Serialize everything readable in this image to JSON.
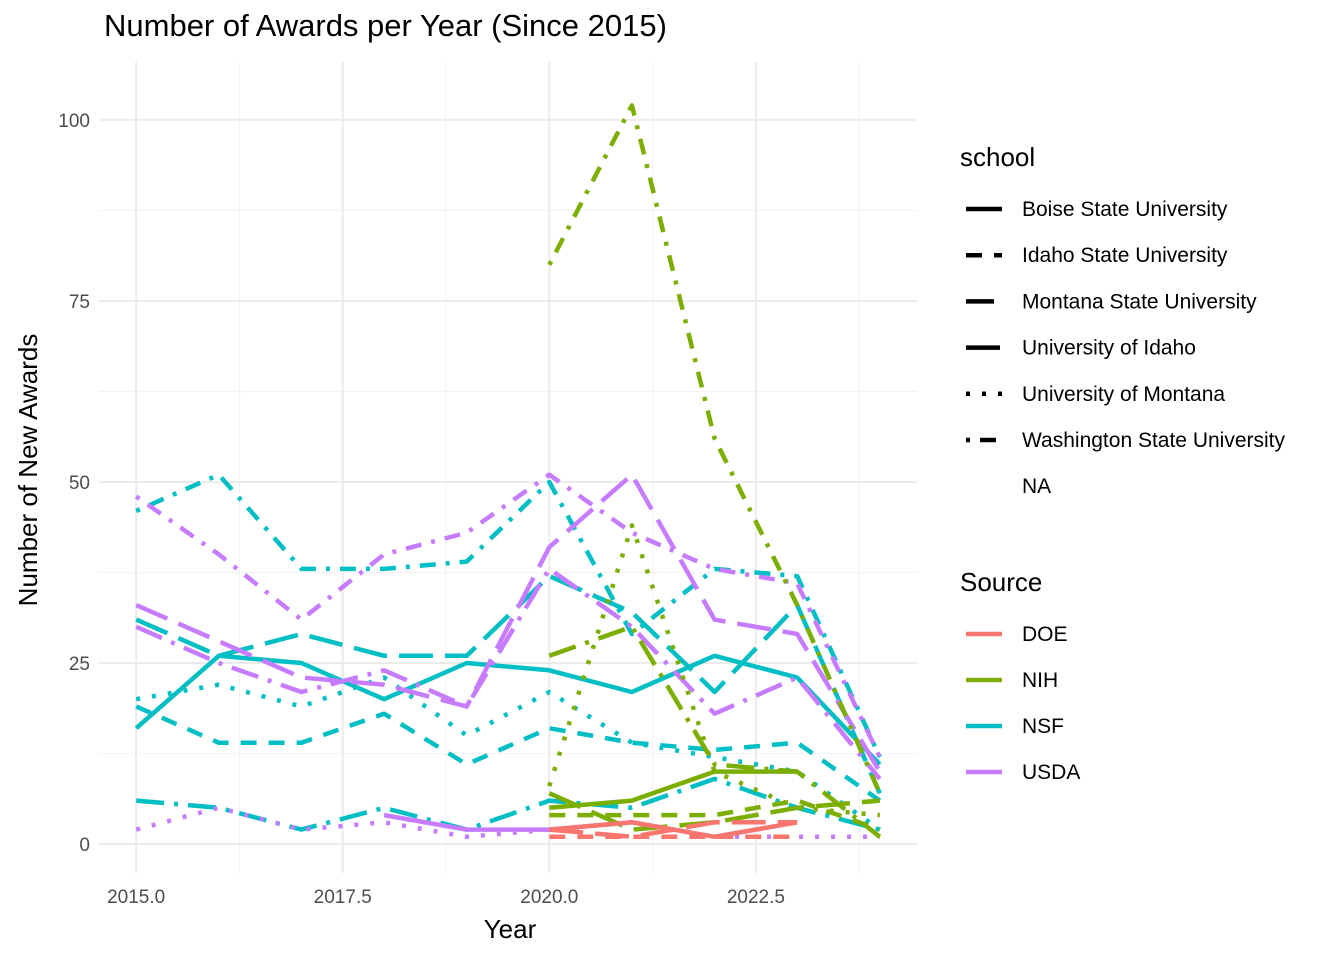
{
  "chart_data": {
    "type": "line",
    "title": "Number of Awards per Year (Since 2015)",
    "xlabel": "Year",
    "ylabel": "Number of New Awards",
    "xlim": [
      2014.55,
      2024.45
    ],
    "ylim": [
      -4,
      108
    ],
    "x_ticks": [
      2015.0,
      2017.5,
      2020.0,
      2022.5
    ],
    "x_tick_labels": [
      "2015.0",
      "2017.5",
      "2020.0",
      "2022.5"
    ],
    "y_ticks": [
      0,
      25,
      50,
      75,
      100
    ],
    "y_tick_labels": [
      "0",
      "25",
      "50",
      "75",
      "100"
    ],
    "grid": true,
    "legend_placement": "right",
    "legend_school_title": "school",
    "legend_source_title": "Source",
    "schools": [
      {
        "name": "Boise State University",
        "dash": "solid"
      },
      {
        "name": "Idaho State University",
        "dash": "dashed"
      },
      {
        "name": "Montana State University",
        "dash": "longdash-dot"
      },
      {
        "name": "University of Idaho",
        "dash": "longdash"
      },
      {
        "name": "University of Montana",
        "dash": "dotted"
      },
      {
        "name": "Washington State University",
        "dash": "dot-dash"
      },
      {
        "name": "NA",
        "dash": "none"
      }
    ],
    "sources": [
      {
        "name": "DOE",
        "color": "#F8766D"
      },
      {
        "name": "NIH",
        "color": "#7CAE00"
      },
      {
        "name": "NSF",
        "color": "#00BFC4"
      },
      {
        "name": "USDA",
        "color": "#C77CFF"
      }
    ],
    "series": [
      {
        "source": "NSF",
        "school": "Boise State University",
        "x": [
          2015,
          2016,
          2017,
          2018,
          2019,
          2020,
          2021,
          2022,
          2023,
          2024
        ],
        "y": [
          16,
          26,
          25,
          20,
          25,
          24,
          21,
          26,
          23,
          11
        ]
      },
      {
        "source": "NSF",
        "school": "Washington State University",
        "x": [
          2015,
          2016,
          2017,
          2018,
          2019,
          2020,
          2021,
          2022,
          2023,
          2024
        ],
        "y": [
          46,
          51,
          38,
          38,
          39,
          50,
          29,
          38,
          37,
          12
        ]
      },
      {
        "source": "NSF",
        "school": "University of Idaho",
        "x": [
          2015,
          2016,
          2017,
          2018,
          2019,
          2020,
          2021,
          2022,
          2023,
          2024
        ],
        "y": [
          31,
          26,
          29,
          26,
          26,
          37,
          32,
          21,
          33,
          7
        ]
      },
      {
        "source": "NSF",
        "school": "Idaho State University",
        "x": [
          2015,
          2016,
          2017,
          2018,
          2019,
          2020,
          2021,
          2022,
          2023,
          2024
        ],
        "y": [
          19,
          14,
          14,
          18,
          11,
          16,
          14,
          13,
          14,
          6
        ]
      },
      {
        "source": "NSF",
        "school": "University of Montana",
        "x": [
          2015,
          2016,
          2017,
          2018,
          2019,
          2020,
          2021,
          2022,
          2023,
          2024
        ],
        "y": [
          20,
          22,
          19,
          23,
          15,
          21,
          14,
          12,
          10,
          2
        ]
      },
      {
        "source": "NSF",
        "school": "Montana State University",
        "x": [
          2015,
          2016,
          2017,
          2018,
          2019,
          2020,
          2021,
          2022,
          2023,
          2024
        ],
        "y": [
          6,
          5,
          2,
          5,
          2,
          6,
          5,
          9,
          5,
          2
        ]
      },
      {
        "source": "USDA",
        "school": "Washington State University",
        "x": [
          2015,
          2016,
          2017,
          2018,
          2019,
          2020,
          2021,
          2022,
          2023,
          2024
        ],
        "y": [
          48,
          40,
          31,
          40,
          43,
          51,
          43,
          38,
          36,
          12
        ]
      },
      {
        "source": "USDA",
        "school": "University of Idaho",
        "x": [
          2015,
          2016,
          2017,
          2018,
          2019,
          2020,
          2021,
          2022,
          2023,
          2024
        ],
        "y": [
          33,
          28,
          23,
          22,
          19,
          41,
          51,
          31,
          29,
          10
        ]
      },
      {
        "source": "USDA",
        "school": "Montana State University",
        "x": [
          2015,
          2016,
          2017,
          2018,
          2019,
          2020,
          2021,
          2022,
          2023,
          2024
        ],
        "y": [
          30,
          25,
          21,
          24,
          19,
          38,
          30,
          18,
          23,
          9
        ]
      },
      {
        "source": "USDA",
        "school": "University of Montana",
        "x": [
          2015,
          2016,
          2017,
          2018,
          2019,
          2020,
          2021,
          2022,
          2023,
          2024
        ],
        "y": [
          2,
          5,
          2,
          3,
          1,
          2,
          3,
          1,
          1,
          1
        ]
      },
      {
        "source": "USDA",
        "school": "Boise State University",
        "x": [
          2018,
          2019,
          2020,
          2021,
          2022,
          2023
        ],
        "y": [
          4,
          2,
          2,
          3,
          1,
          3
        ]
      },
      {
        "source": "NIH",
        "school": "Washington State University",
        "x": [
          2020,
          2021,
          2022,
          2023,
          2024
        ],
        "y": [
          80,
          102,
          56,
          33,
          7
        ]
      },
      {
        "source": "NIH",
        "school": "Montana State University",
        "x": [
          2020,
          2021,
          2022,
          2023,
          2024
        ],
        "y": [
          26,
          30,
          11,
          10,
          1
        ]
      },
      {
        "source": "NIH",
        "school": "University of Montana",
        "x": [
          2020,
          2021,
          2022,
          2023,
          2024
        ],
        "y": [
          8,
          44,
          10,
          5,
          4
        ]
      },
      {
        "source": "NIH",
        "school": "Boise State University",
        "x": [
          2020,
          2021,
          2022,
          2023
        ],
        "y": [
          5,
          6,
          10,
          10
        ]
      },
      {
        "source": "NIH",
        "school": "University of Idaho",
        "x": [
          2020,
          2021,
          2022,
          2023,
          2024
        ],
        "y": [
          7,
          2,
          3,
          5,
          6
        ]
      },
      {
        "source": "NIH",
        "school": "Idaho State University",
        "x": [
          2020,
          2021,
          2022,
          2023,
          2024
        ],
        "y": [
          4,
          4,
          4,
          6,
          2
        ]
      },
      {
        "source": "DOE",
        "school": "Boise State University",
        "x": [
          2020,
          2021,
          2022,
          2023
        ],
        "y": [
          2,
          3,
          1,
          3
        ]
      },
      {
        "source": "DOE",
        "school": "Idaho State University",
        "x": [
          2020,
          2021,
          2022,
          2023
        ],
        "y": [
          1,
          1,
          1,
          1
        ]
      },
      {
        "source": "DOE",
        "school": "University of Idaho",
        "x": [
          2020,
          2021,
          2022,
          2023
        ],
        "y": [
          2,
          1,
          3,
          3
        ]
      }
    ]
  }
}
